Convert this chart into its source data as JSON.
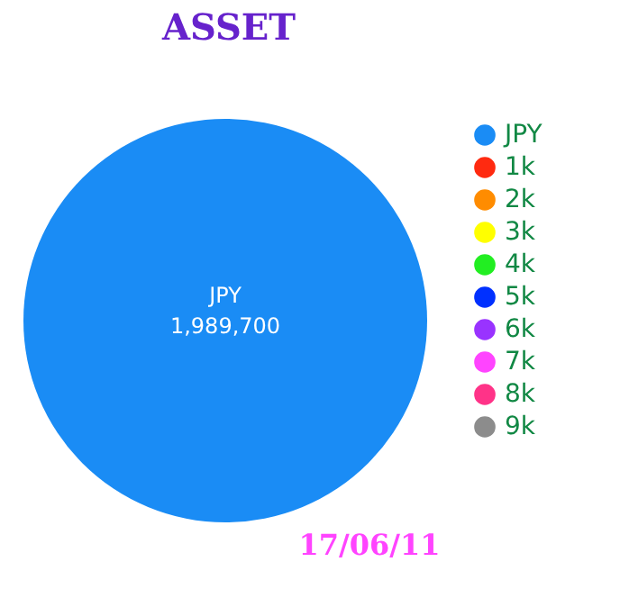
{
  "chart_data": {
    "type": "pie",
    "title": "ASSET",
    "categories": [
      "JPY",
      "1k",
      "2k",
      "3k",
      "4k",
      "5k",
      "6k",
      "7k",
      "8k",
      "9k"
    ],
    "values": [
      1989700,
      0,
      0,
      0,
      0,
      0,
      0,
      0,
      0,
      0
    ],
    "colors": [
      "#1a8cf5",
      "#ff2a10",
      "#ff8c00",
      "#ffff00",
      "#22ee22",
      "#0030ff",
      "#9933ff",
      "#ff44ff",
      "#ff3388",
      "#8c8c8c"
    ],
    "value_labels": [
      "1,989,700",
      null,
      null,
      null,
      null,
      null,
      null,
      null,
      null,
      null
    ],
    "legend": "right",
    "annotations": [
      "17/06/11"
    ]
  }
}
